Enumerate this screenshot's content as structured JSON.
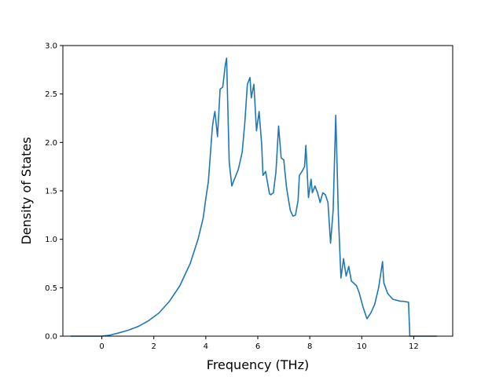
{
  "chart_data": {
    "type": "line",
    "title": "",
    "xlabel": "Frequency (THz)",
    "ylabel": "Density of States",
    "xlim": [
      -1.5,
      13.5
    ],
    "ylim": [
      0.0,
      3.0
    ],
    "xticks": [
      "0",
      "2",
      "4",
      "6",
      "8",
      "10",
      "12"
    ],
    "xtick_values": [
      0,
      2,
      4,
      6,
      8,
      10,
      12
    ],
    "yticks": [
      "0.0",
      "0.5",
      "1.0",
      "1.5",
      "2.0",
      "2.5",
      "3.0"
    ],
    "ytick_values": [
      0.0,
      0.5,
      1.0,
      1.5,
      2.0,
      2.5,
      3.0
    ],
    "grid": false,
    "series": [
      {
        "color": "#1f77b4",
        "x": [
          -1.2,
          0.0,
          0.3,
          0.6,
          1.0,
          1.4,
          1.8,
          2.2,
          2.6,
          3.0,
          3.4,
          3.7,
          3.9,
          4.0,
          4.1,
          4.25,
          4.3,
          4.35,
          4.45,
          4.55,
          4.65,
          4.75,
          4.8,
          4.9,
          5.0,
          5.1,
          5.25,
          5.4,
          5.5,
          5.6,
          5.7,
          5.75,
          5.85,
          5.95,
          6.05,
          6.15,
          6.2,
          6.3,
          6.45,
          6.5,
          6.6,
          6.7,
          6.8,
          6.9,
          7.0,
          7.1,
          7.15,
          7.25,
          7.35,
          7.45,
          7.55,
          7.6,
          7.7,
          7.8,
          7.85,
          7.95,
          8.05,
          8.1,
          8.2,
          8.3,
          8.4,
          8.5,
          8.6,
          8.7,
          8.8,
          8.9,
          9.0,
          9.05,
          9.1,
          9.2,
          9.3,
          9.4,
          9.5,
          9.6,
          9.8,
          9.9,
          10.05,
          10.2,
          10.35,
          10.5,
          10.65,
          10.8,
          10.85,
          11.0,
          11.2,
          11.5,
          11.6,
          11.8,
          11.85,
          12.9
        ],
        "y": [
          0.0,
          0.0,
          0.01,
          0.03,
          0.06,
          0.1,
          0.16,
          0.24,
          0.36,
          0.52,
          0.75,
          1.0,
          1.22,
          1.42,
          1.6,
          2.15,
          2.25,
          2.32,
          2.06,
          2.55,
          2.57,
          2.8,
          2.87,
          1.8,
          1.55,
          1.62,
          1.72,
          1.9,
          2.2,
          2.6,
          2.67,
          2.46,
          2.6,
          2.12,
          2.32,
          1.98,
          1.66,
          1.7,
          1.47,
          1.46,
          1.48,
          1.7,
          2.17,
          1.84,
          1.82,
          1.55,
          1.46,
          1.3,
          1.24,
          1.25,
          1.4,
          1.66,
          1.7,
          1.75,
          1.97,
          1.43,
          1.62,
          1.48,
          1.55,
          1.48,
          1.38,
          1.48,
          1.46,
          1.38,
          0.96,
          1.3,
          2.28,
          1.78,
          1.25,
          0.6,
          0.8,
          0.62,
          0.72,
          0.57,
          0.52,
          0.45,
          0.3,
          0.18,
          0.24,
          0.33,
          0.5,
          0.77,
          0.55,
          0.44,
          0.38,
          0.36,
          0.36,
          0.35,
          0.0,
          0.0
        ]
      }
    ]
  }
}
